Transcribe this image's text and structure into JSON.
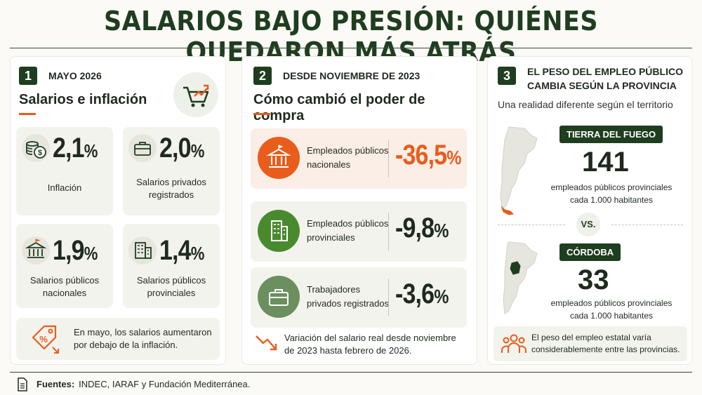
{
  "header": {
    "title": "SALARIOS BAJO PRESIÓN: QUIÉNES QUEDARON MÁS ATRÁS"
  },
  "panel1": {
    "number": "1",
    "kicker": "MAYO 2026",
    "heading": "Salarios e inflación",
    "stats": [
      {
        "value": "2,1",
        "unit": "%",
        "label": "Inflación",
        "icon": "coins-icon"
      },
      {
        "value": "2,0",
        "unit": "%",
        "label": "Salarios privados registrados",
        "icon": "briefcase-icon"
      },
      {
        "value": "1,9",
        "unit": "%",
        "label": "Salarios públicos nacionales",
        "icon": "government-building-icon"
      },
      {
        "value": "1,4",
        "unit": "%",
        "label": "Salarios públicos provinciales",
        "icon": "office-building-icon"
      }
    ],
    "note": "En mayo, los salarios aumentaron por debajo de la inflación."
  },
  "panel2": {
    "number": "2",
    "kicker": "DESDE NOVIEMBRE DE 2023",
    "heading": "Cómo cambió el poder de compra",
    "rows": [
      {
        "label": "Empleados públicos nacionales",
        "value": "-36,5",
        "unit": "%",
        "color": "#e85d1c",
        "bg": "#fbeee6",
        "iconbg": "#e85d1c"
      },
      {
        "label": "Empleados públicos provinciales",
        "value": "-9,8",
        "unit": "%",
        "color": "#1f2a1e",
        "bg": "#f3f3ee",
        "iconbg": "#4a8a2e"
      },
      {
        "label": "Trabajadores privados registrados",
        "value": "-3,6",
        "unit": "%",
        "color": "#1f2a1e",
        "bg": "#f3f3ee",
        "iconbg": "#6b8f5e"
      }
    ],
    "footnote": "Variación del salario real desde noviembre de 2023 hasta febrero de 2026."
  },
  "panel3": {
    "number": "3",
    "kicker_line1": "EL PESO DEL EMPLEO PÚBLICO",
    "kicker_line2": "CAMBIA SEGÚN LA PROVINCIA",
    "subtitle": "Una realidad diferente según el territorio",
    "regions": [
      {
        "name": "TIERRA DEL FUEGO",
        "value": "141",
        "desc": "empleados públicos provinciales cada 1.000 habitantes"
      },
      {
        "name": "CÓRDOBA",
        "value": "33",
        "desc": "empleados públicos provinciales cada 1.000 habitantes"
      }
    ],
    "vs": "VS.",
    "note": "El peso del empleo estatal varía considerablemente entre las provincias."
  },
  "source": {
    "label": "Fuentes:",
    "text": "INDEC, IARAF y Fundación Mediterránea."
  },
  "colors": {
    "accent": "#e85d1c",
    "dark_green": "#1f3d1f",
    "green": "#4a8a2e"
  }
}
